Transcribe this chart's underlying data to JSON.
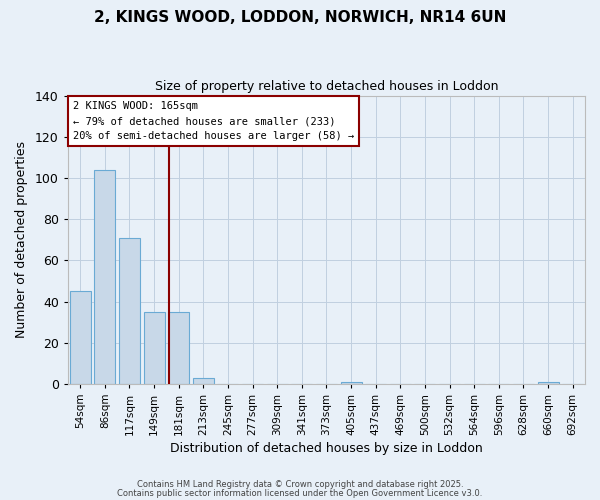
{
  "title": "2, KINGS WOOD, LODDON, NORWICH, NR14 6UN",
  "subtitle": "Size of property relative to detached houses in Loddon",
  "xlabel": "Distribution of detached houses by size in Loddon",
  "ylabel": "Number of detached properties",
  "bar_color": "#c8d8e8",
  "bar_edge_color": "#6aaad4",
  "background_color": "#e8f0f8",
  "categories": [
    "54sqm",
    "86sqm",
    "117sqm",
    "149sqm",
    "181sqm",
    "213sqm",
    "245sqm",
    "277sqm",
    "309sqm",
    "341sqm",
    "373sqm",
    "405sqm",
    "437sqm",
    "469sqm",
    "500sqm",
    "532sqm",
    "564sqm",
    "596sqm",
    "628sqm",
    "660sqm",
    "692sqm"
  ],
  "values": [
    45,
    104,
    71,
    35,
    35,
    3,
    0,
    0,
    0,
    0,
    0,
    1,
    0,
    0,
    0,
    0,
    0,
    0,
    0,
    1,
    0
  ],
  "ylim": [
    0,
    140
  ],
  "yticks": [
    0,
    20,
    40,
    60,
    80,
    100,
    120,
    140
  ],
  "vline_x": 3.62,
  "vline_color": "#8b0000",
  "annotation_title": "2 KINGS WOOD: 165sqm",
  "annotation_line1": "← 79% of detached houses are smaller (233)",
  "annotation_line2": "20% of semi-detached houses are larger (58) →",
  "footer1": "Contains HM Land Registry data © Crown copyright and database right 2025.",
  "footer2": "Contains public sector information licensed under the Open Government Licence v3.0.",
  "grid_color": "#c0cfe0",
  "figsize": [
    6.0,
    5.0
  ],
  "dpi": 100
}
